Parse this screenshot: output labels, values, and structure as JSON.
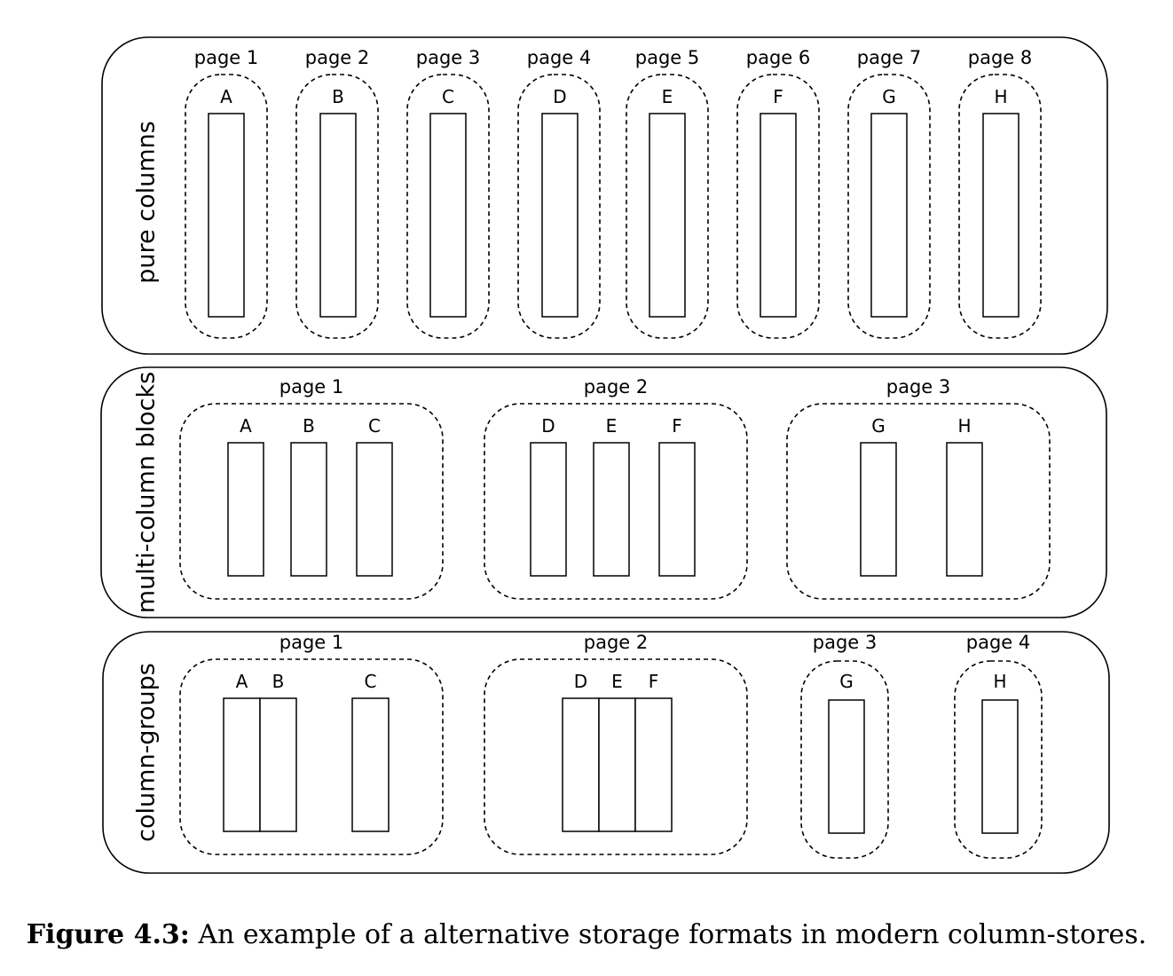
{
  "panels": [
    {
      "label": "pure columns",
      "pages": [
        {
          "label": "page 1",
          "columns": [
            "A"
          ]
        },
        {
          "label": "page 2",
          "columns": [
            "B"
          ]
        },
        {
          "label": "page 3",
          "columns": [
            "C"
          ]
        },
        {
          "label": "page 4",
          "columns": [
            "D"
          ]
        },
        {
          "label": "page 5",
          "columns": [
            "E"
          ]
        },
        {
          "label": "page 6",
          "columns": [
            "F"
          ]
        },
        {
          "label": "page 7",
          "columns": [
            "G"
          ]
        },
        {
          "label": "page 8",
          "columns": [
            "H"
          ]
        }
      ]
    },
    {
      "label": "multi-column blocks",
      "pages": [
        {
          "label": "page 1",
          "columns": [
            "A",
            "B",
            "C"
          ]
        },
        {
          "label": "page 2",
          "columns": [
            "D",
            "E",
            "F"
          ]
        },
        {
          "label": "page 3",
          "columns": [
            "G",
            "H"
          ]
        }
      ]
    },
    {
      "label": "column-groups",
      "pages": [
        {
          "label": "page 1",
          "columns": [
            "A",
            "B",
            "C"
          ]
        },
        {
          "label": "page 2",
          "columns": [
            "D",
            "E",
            "F"
          ]
        },
        {
          "label": "page 3",
          "columns": [
            "G"
          ]
        },
        {
          "label": "page 4",
          "columns": [
            "H"
          ]
        }
      ]
    }
  ],
  "caption": {
    "prefix": "Figure 4.3:",
    "text": " An example of a alternative storage formats in modern column-stores."
  }
}
